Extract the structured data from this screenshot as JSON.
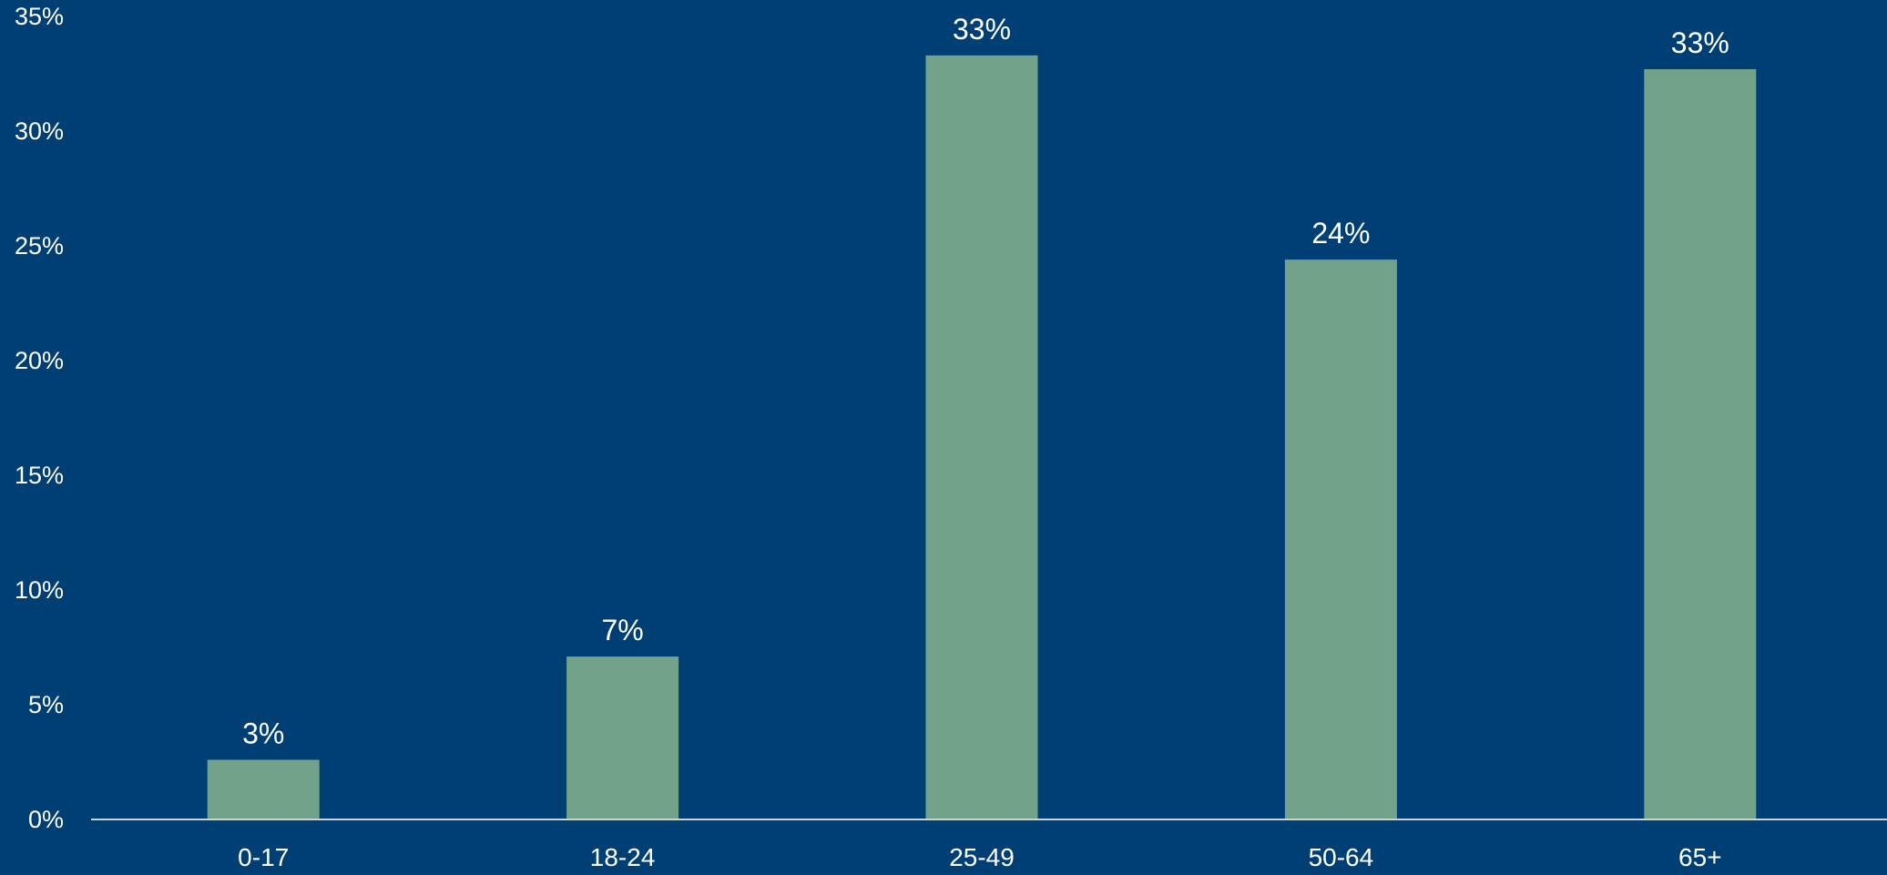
{
  "chart_data": {
    "type": "bar",
    "categories": [
      "0-17",
      "18-24",
      "25-49",
      "50-64",
      "65+"
    ],
    "values": [
      2.6,
      7.1,
      33.3,
      24.4,
      32.7
    ],
    "data_labels": [
      "3%",
      "7%",
      "33%",
      "24%",
      "33%"
    ],
    "ylim": [
      0,
      35
    ],
    "y_ticks": [
      0,
      5,
      10,
      15,
      20,
      25,
      30,
      35
    ],
    "y_tick_labels": [
      "0%",
      "5%",
      "10%",
      "15%",
      "20%",
      "25%",
      "30%",
      "35%"
    ],
    "grid": false,
    "legend": "none",
    "colors": {
      "background": "#003f74",
      "bar": "#72a38a",
      "axis_line": "#c9d3de",
      "text": "#ffffff"
    }
  }
}
